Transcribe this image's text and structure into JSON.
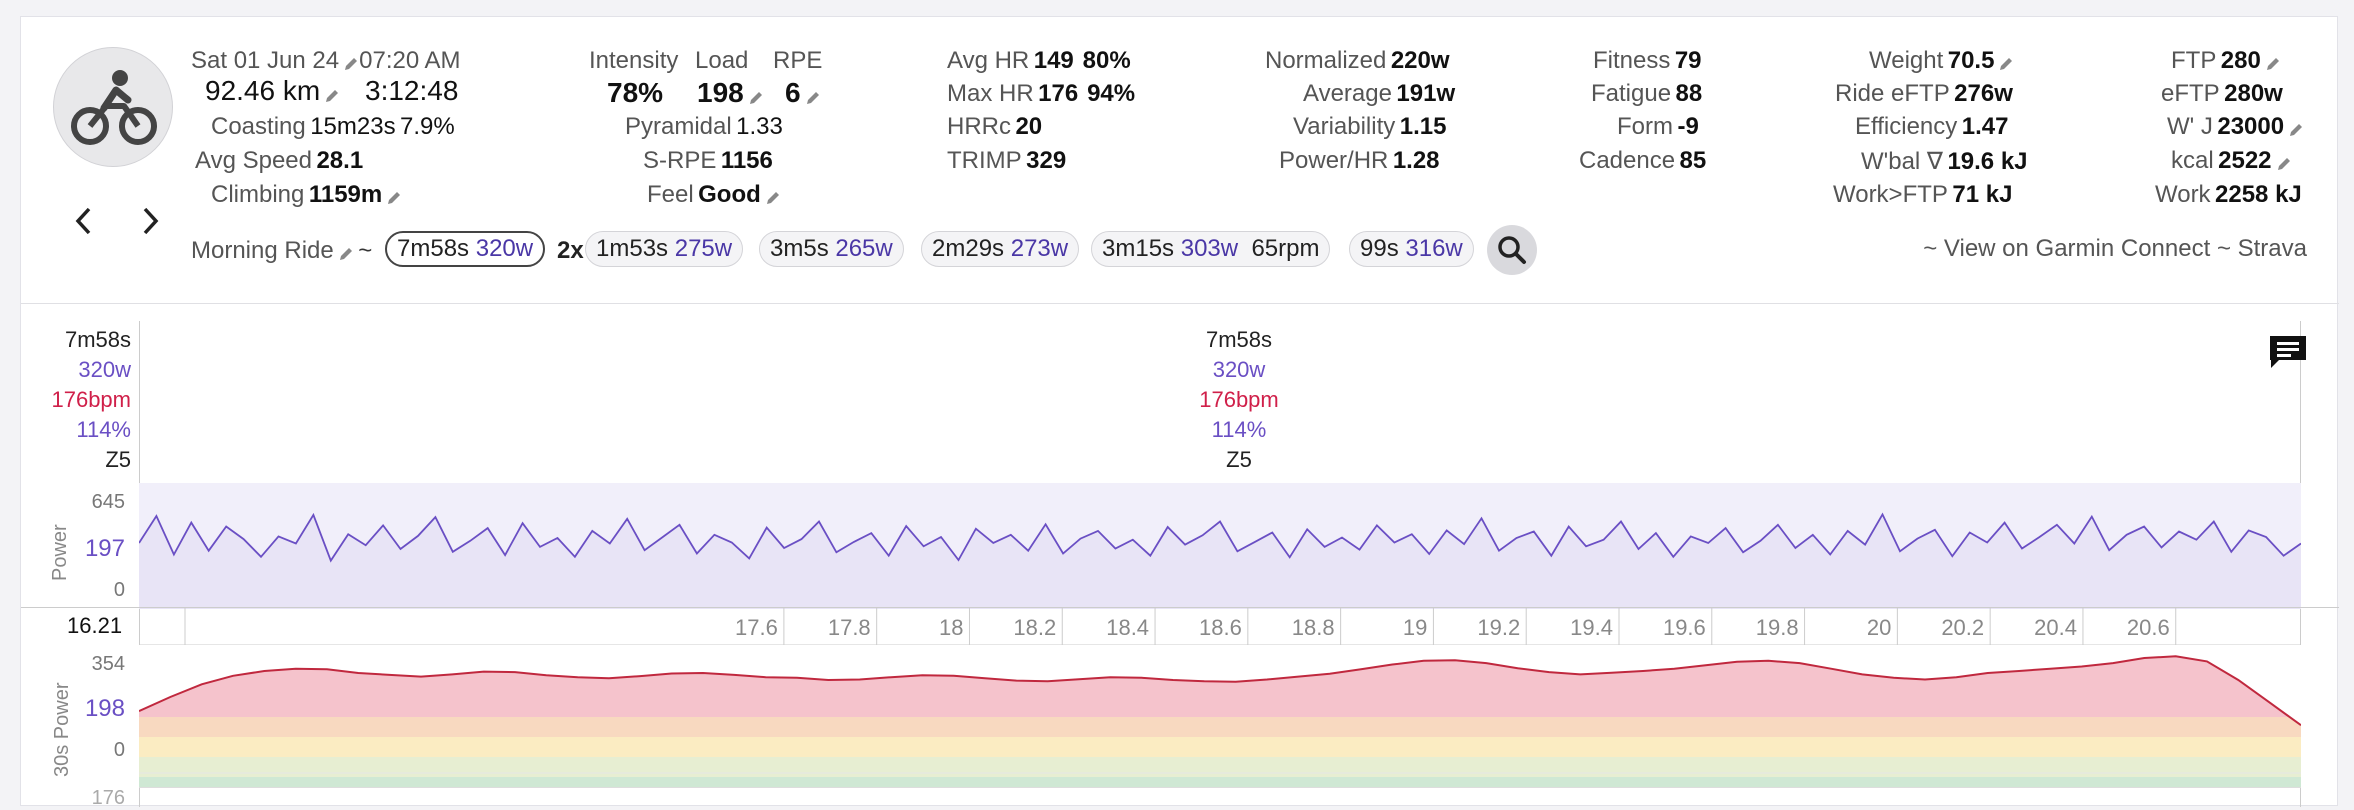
{
  "header": {
    "date": "Sat 01 Jun 24",
    "time": "07:20 AM",
    "distance": "92.46 km",
    "duration": "3:12:48",
    "coasting_label": "Coasting",
    "coasting_time": "15m23s",
    "coasting_pct": "7.9%",
    "avgspeed_label": "Avg Speed",
    "avgspeed_value": "28.1",
    "climbing_label": "Climbing",
    "climbing_value": "1159m"
  },
  "col2": {
    "intensity_label": "Intensity",
    "intensity_value": "78%",
    "load_label": "Load",
    "load_value": "198",
    "rpe_label": "RPE",
    "rpe_value": "6",
    "pyramidal_label": "Pyramidal",
    "pyramidal_value": "1.33",
    "srpe_label": "S-RPE",
    "srpe_value": "1156",
    "feel_label": "Feel",
    "feel_value": "Good"
  },
  "col3": {
    "avghr_label": "Avg HR",
    "avghr_value": "149",
    "avghr_pct": "80%",
    "maxhr_label": "Max HR",
    "maxhr_value": "176",
    "maxhr_pct": "94%",
    "hrrc_label": "HRRc",
    "hrrc_value": "20",
    "trimp_label": "TRIMP",
    "trimp_value": "329"
  },
  "col4": {
    "normalized_label": "Normalized",
    "normalized_value": "220w",
    "average_label": "Average",
    "average_value": "191w",
    "variability_label": "Variability",
    "variability_value": "1.15",
    "powerhr_label": "Power/HR",
    "powerhr_value": "1.28"
  },
  "col5": {
    "fitness_label": "Fitness",
    "fitness_value": "79",
    "fatigue_label": "Fatigue",
    "fatigue_value": "88",
    "form_label": "Form",
    "form_value": "-9",
    "cadence_label": "Cadence",
    "cadence_value": "85"
  },
  "col6": {
    "weight_label": "Weight",
    "weight_value": "70.5",
    "rideeftp_label": "Ride eFTP",
    "rideeftp_value": "276w",
    "efficiency_label": "Efficiency",
    "efficiency_value": "1.47",
    "wbal_label": "W'bal ∇",
    "wbal_value": "19.6 kJ",
    "workftp_label": "Work>FTP",
    "workftp_value": "71 kJ"
  },
  "col7": {
    "ftp_label": "FTP",
    "ftp_value": "280",
    "eftp_label": "eFTP",
    "eftp_value": "280w",
    "wj_label": "W' J",
    "wj_value": "23000",
    "kcal_label": "kcal",
    "kcal_value": "2522",
    "work_label": "Work",
    "work_value": "2258 kJ"
  },
  "intervals": {
    "name": "Morning Ride",
    "tilde": "~",
    "repeat": "2x",
    "chips": [
      {
        "time": "7m58s",
        "watts": "320w",
        "extra": ""
      },
      {
        "time": "1m53s",
        "watts": "275w",
        "extra": ""
      },
      {
        "time": "3m5s",
        "watts": "265w",
        "extra": ""
      },
      {
        "time": "2m29s",
        "watts": "273w",
        "extra": ""
      },
      {
        "time": "3m15s",
        "watts": "303w",
        "extra": "65rpm"
      },
      {
        "time": "99s",
        "watts": "316w",
        "extra": ""
      }
    ]
  },
  "links": {
    "prefix": "~",
    "garmin": "View on Garmin Connect",
    "sep": "~",
    "strava": "Strava"
  },
  "tooltip": {
    "time": "7m58s",
    "watts": "320w",
    "bpm": "176bpm",
    "pct": "114%",
    "zone": "Z5"
  },
  "colors": {
    "power": "#6a4fc4",
    "hr": "#d0204a",
    "muted": "#555555"
  },
  "chart_data": [
    {
      "type": "line",
      "ylabel": "Power",
      "yticks": [
        "645",
        "197",
        "0"
      ],
      "ylim": [
        0,
        645
      ],
      "x_start_label": "16.21",
      "xticks": [
        17.6,
        17.8,
        18,
        18.2,
        18.4,
        18.6,
        18.8,
        19,
        19.2,
        19.4,
        19.6,
        19.8,
        20,
        20.2,
        20.4,
        20.6
      ],
      "xlim": [
        16.21,
        20.87
      ],
      "series": [
        {
          "values": [
            197,
            246,
            176,
            234,
            183,
            227,
            204,
            172,
            209,
            196,
            248,
            165,
            213,
            193,
            229,
            186,
            210,
            244,
            181,
            201,
            224,
            175,
            233,
            190,
            206,
            172,
            219,
            196,
            241,
            184,
            207,
            230,
            178,
            212,
            198,
            169,
            225,
            188,
            204,
            236,
            180,
            199,
            215,
            174,
            228,
            191,
            208,
            166,
            223,
            197,
            212,
            183,
            231,
            178,
            205,
            219,
            187,
            203,
            174,
            226,
            194,
            211,
            236,
            182,
            199,
            216,
            171,
            222,
            190,
            207,
            185,
            229,
            198,
            213,
            177,
            220,
            195,
            242,
            183,
            206,
            218,
            174,
            227,
            191,
            203,
            236,
            186,
            215,
            172,
            209,
            197,
            224,
            180,
            201,
            230,
            188,
            212,
            176,
            219,
            194,
            249,
            182,
            205,
            221,
            173,
            216,
            198,
            234,
            187,
            208,
            230,
            196,
            245,
            184,
            212,
            227,
            189,
            218,
            203,
            236,
            181,
            220,
            208,
            174,
            196
          ]
        }
      ]
    },
    {
      "type": "area",
      "ylabel": "30s Power",
      "yticks": [
        "354",
        "198",
        "0"
      ],
      "ylim": [
        0,
        354
      ],
      "xlim": [
        16.21,
        20.87
      ],
      "series": [
        {
          "values": [
            120,
            170,
            215,
            245,
            262,
            270,
            268,
            255,
            248,
            242,
            250,
            260,
            258,
            247,
            240,
            236,
            244,
            253,
            255,
            248,
            240,
            238,
            230,
            232,
            240,
            247,
            245,
            236,
            228,
            226,
            233,
            240,
            238,
            230,
            226,
            224,
            232,
            242,
            252,
            268,
            285,
            298,
            300,
            290,
            272,
            258,
            250,
            256,
            262,
            270,
            282,
            295,
            298,
            290,
            270,
            250,
            238,
            232,
            240,
            255,
            262,
            270,
            278,
            290,
            308,
            314,
            296,
            230,
            150,
            70
          ]
        }
      ]
    }
  ]
}
